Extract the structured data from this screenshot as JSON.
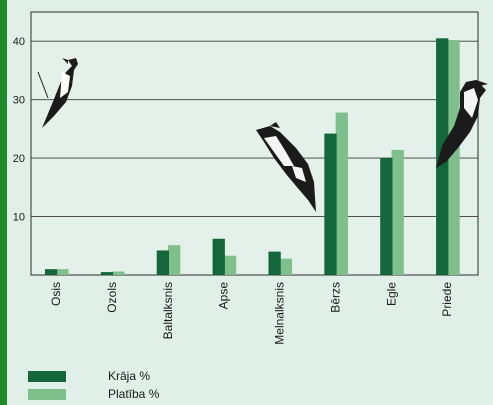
{
  "chart_data": {
    "type": "bar",
    "title": "",
    "xlabel": "",
    "ylabel": "",
    "ylim": [
      0,
      45
    ],
    "yticks": [
      10,
      20,
      30,
      40
    ],
    "grid": true,
    "legend_position": "bottom-left",
    "categories": [
      "Osis",
      "Ozols",
      "Baltalksnis",
      "Apse",
      "Melnalksnis",
      "Bērzs",
      "Egle",
      "Priede"
    ],
    "series": [
      {
        "name": "Krāja %",
        "color": "#14673a",
        "values": [
          1.0,
          0.5,
          4.2,
          6.2,
          4.0,
          24.2,
          20.0,
          40.5
        ]
      },
      {
        "name": "Platība %",
        "color": "#7fbf8c",
        "values": [
          1.0,
          0.6,
          5.1,
          3.3,
          2.8,
          27.8,
          21.4,
          40.2
        ]
      }
    ]
  },
  "decorations": [
    "woodpecker-illustration",
    "woodpecker-illustration",
    "woodpecker-illustration"
  ]
}
